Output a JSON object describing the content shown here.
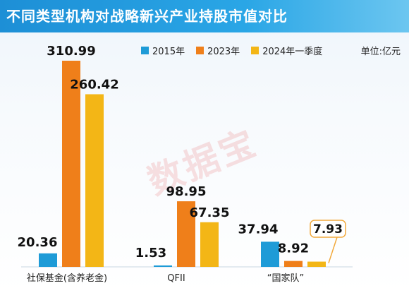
{
  "title": "不同类型机构对战略新兴产业持股市值对比",
  "unit_label": "单位:亿元",
  "watermark": "数据宝",
  "colors": {
    "s2015": "#1e9bd7",
    "s2023": "#ef7f1a",
    "s2024q1": "#f3b616",
    "callout": "#f2a93b",
    "title_bar": "#1d8fd6"
  },
  "chart_data": {
    "type": "bar",
    "title": "不同类型机构对战略新兴产业持股市值对比",
    "ylabel": "",
    "unit": "单位:亿元",
    "categories": [
      "社保基金(含养老金)",
      "QFII",
      "“国家队”"
    ],
    "series": [
      {
        "name": "2015年",
        "values": [
          20.36,
          1.53,
          37.94
        ]
      },
      {
        "name": "2023年",
        "values": [
          310.99,
          98.95,
          8.92
        ]
      },
      {
        "name": "2024年一季度",
        "values": [
          260.42,
          67.35,
          7.93
        ]
      }
    ],
    "value_labels": [
      [
        "20.36",
        "310.99",
        "260.42"
      ],
      [
        "1.53",
        "98.95",
        "67.35"
      ],
      [
        "37.94",
        "8.92",
        "7.93"
      ]
    ],
    "legend_position": "top",
    "grid": false
  }
}
